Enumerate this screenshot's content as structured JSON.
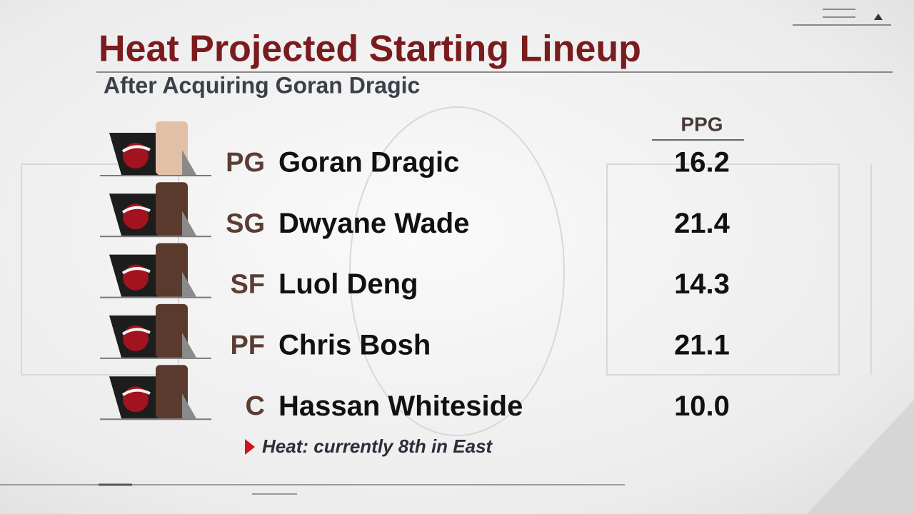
{
  "header": {
    "title": "Heat Projected Starting Lineup",
    "subtitle": "After Acquiring Goran Dragic"
  },
  "table": {
    "columns": [
      "PPG"
    ],
    "rows": [
      {
        "position": "PG",
        "name": "Goran Dragic",
        "ppg": "16.2"
      },
      {
        "position": "SG",
        "name": "Dwyane Wade",
        "ppg": "21.4"
      },
      {
        "position": "SF",
        "name": "Luol Deng",
        "ppg": "14.3"
      },
      {
        "position": "PF",
        "name": "Chris Bosh",
        "ppg": "21.1"
      },
      {
        "position": "C",
        "name": "Hassan Whiteside",
        "ppg": "10.0"
      }
    ]
  },
  "note": "Heat: currently 8th in East"
}
